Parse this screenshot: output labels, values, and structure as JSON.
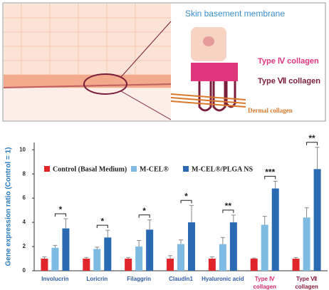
{
  "illustration": {
    "title": "Skin basement membrane",
    "labels": [
      "Type Ⅳ collagen",
      "Type Ⅶ collagen",
      "Dermal collagen"
    ]
  },
  "chart_data": {
    "type": "bar",
    "y_label": "Gene expression ratio (Control = 1)",
    "categories": [
      "Involucrin",
      "Loricrin",
      "Filaggrin",
      "Claudin1",
      "Hyaluronic acid",
      "Type Ⅳ collagen",
      "Type Ⅶ collagen"
    ],
    "category_colors": [
      "#2e5fa8",
      "#2e5fa8",
      "#2e5fa8",
      "#2e5fa8",
      "#2e5fa8",
      "#d6286e",
      "#8b1d3c"
    ],
    "series": [
      {
        "name": "Control (Basal Medium)",
        "color": "#e0262b",
        "values": [
          1,
          1,
          1,
          1,
          1,
          1,
          1
        ],
        "errors": [
          0.15,
          0.1,
          0.1,
          0.25,
          0.15,
          0.05,
          0.1
        ]
      },
      {
        "name": "M-CEL®",
        "color": "#7dbbe3",
        "values": [
          1.9,
          1.8,
          2.0,
          2.2,
          2.2,
          3.8,
          4.4
        ],
        "errors": [
          0.2,
          0.15,
          0.5,
          0.35,
          0.55,
          0.7,
          0.8
        ]
      },
      {
        "name": "M-CEL®/PLGA NS",
        "color": "#2a6ab3",
        "values": [
          3.5,
          2.75,
          3.4,
          4.0,
          4.0,
          6.8,
          8.4
        ],
        "errors": [
          0.8,
          0.6,
          0.8,
          1.4,
          0.6,
          0.6,
          1.8
        ]
      }
    ],
    "significance": [
      "*",
      "*",
      "*",
      "*",
      "**",
      "***",
      "**"
    ],
    "ylim": [
      0,
      10.6
    ],
    "yticks": [
      0,
      2,
      4,
      6,
      8,
      10
    ]
  }
}
